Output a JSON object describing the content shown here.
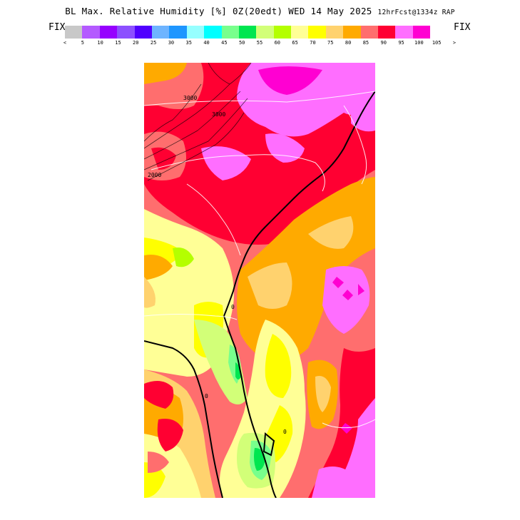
{
  "title": {
    "main": "BL Max. Relative Humidity [%] 0Z(20edt) WED 14 May 2025",
    "sub": "12hrFcst@1334z RAP"
  },
  "fix_left": "FIX",
  "fix_right": "FIX",
  "legend": {
    "colors": [
      "#c8c8c8",
      "#b45aff",
      "#9600ff",
      "#8c50ff",
      "#5000ff",
      "#6eb4ff",
      "#1e96ff",
      "#96ffff",
      "#00ffff",
      "#78ff8c",
      "#00e650",
      "#d2ff78",
      "#b4ff00",
      "#ffff96",
      "#ffff00",
      "#ffd26e",
      "#ffaa00",
      "#ff6e6e",
      "#ff0032",
      "#ff6eff",
      "#ff00d2"
    ],
    "ticks": [
      "<",
      "5",
      "10",
      "15",
      "20",
      "25",
      "30",
      "35",
      "40",
      "45",
      "50",
      "55",
      "60",
      "65",
      "70",
      "75",
      "80",
      "85",
      "90",
      "95",
      "100",
      "105",
      ">"
    ]
  },
  "contour_labels": [
    "3000",
    "3000",
    "2000",
    "0",
    "0",
    "0"
  ]
}
